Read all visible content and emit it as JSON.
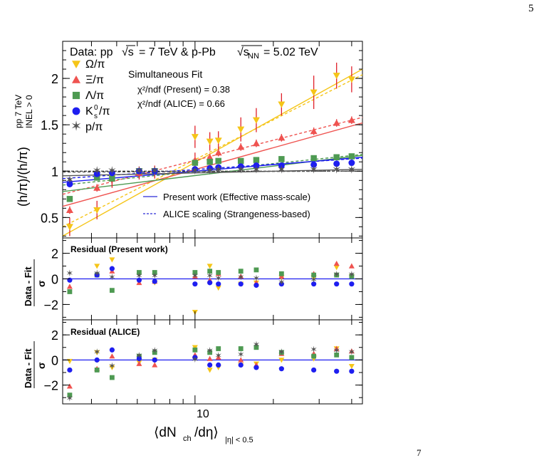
{
  "page": {
    "number": "5",
    "footer_fragment": "7"
  },
  "header": {
    "data_label": "Data: pp",
    "sqrt_label_pp": "√s",
    "pp_energy": "= 7 TeV & p-Pb",
    "sqrt_label_ppb": "√s",
    "ppb_sub": "NN",
    "ppb_energy": "= 5.02 TeV"
  },
  "fit_info": {
    "title": "Simultaneous Fit",
    "chi2_present": "χ²/ndf (Present) = 0.38",
    "chi2_alice": "χ²/ndf (ALICE) = 0.66"
  },
  "legend_species": [
    {
      "label": "Ω/π",
      "color": "#f5c518",
      "marker": "triangle-down"
    },
    {
      "label": "Ξ/π",
      "color": "#ef5350",
      "marker": "triangle-up"
    },
    {
      "label": "Λ/π",
      "color": "#4e9a52",
      "marker": "square"
    },
    {
      "label": "K",
      "sup": "0",
      "sub": "s",
      "tail": "/π",
      "color": "#1e1ef0",
      "marker": "circle"
    },
    {
      "label": "p/π",
      "color": "#555555",
      "marker": "star"
    }
  ],
  "legend_fits": {
    "present": "Present work (Effective mass-scale)",
    "alice": "ALICE scaling (Strangeness-based)"
  },
  "axes": {
    "ylabel_main": "(h/π)/(h/π)",
    "ylabel_sup": "pp 7 TeV",
    "ylabel_sub": "INEL > 0",
    "ylabel_residual_num": "Data - Fit",
    "ylabel_residual_den": "σ",
    "xlabel_left": "⟨dN",
    "xlabel_ch": "ch",
    "xlabel_mid": "/dη⟩",
    "xlabel_sub": "|η| < 0.5",
    "x_tick_label": "10",
    "y_main_ticks": [
      "0.5",
      "1",
      "1.5",
      "2"
    ],
    "y_resid_ticks": [
      "−2",
      "0",
      "2"
    ]
  },
  "panels": {
    "residual_present_title": "Residual (Present work)",
    "residual_alice_title": "Residual (ALICE)"
  },
  "chart_data": [
    {
      "type": "scatter",
      "title": "",
      "xscale": "log",
      "xlim": [
        3.1,
        44
      ],
      "ylim": [
        0.28,
        2.4
      ],
      "reference_line": 1,
      "series": [
        {
          "name": "Ω/π",
          "color": "#f5c518",
          "marker": "triangle-down",
          "x": [
            3.3,
            4.2,
            4.8,
            6.1,
            7.0,
            10.0,
            11.4,
            12.3,
            15.0,
            17.2,
            21.5,
            28.6,
            35.0,
            40.0
          ],
          "y": [
            0.4,
            0.58,
            0.93,
            0.98,
            0.99,
            1.37,
            1.32,
            1.33,
            1.45,
            1.55,
            1.72,
            1.85,
            2.03,
            1.99
          ],
          "err": [
            0.1,
            0.1,
            0.08,
            0.07,
            0.07,
            0.12,
            0.1,
            0.1,
            0.13,
            0.13,
            0.12,
            0.18,
            0.14,
            0.14
          ]
        },
        {
          "name": "Ξ/π",
          "color": "#ef5350",
          "marker": "triangle-up",
          "x": [
            3.3,
            4.2,
            4.8,
            6.1,
            7.0,
            10.0,
            11.4,
            12.3,
            15.0,
            17.2,
            21.5,
            28.6,
            35.0,
            40.0
          ],
          "y": [
            0.58,
            0.82,
            0.92,
            0.98,
            1.0,
            1.12,
            1.15,
            1.2,
            1.26,
            1.3,
            1.36,
            1.43,
            1.52,
            1.55
          ],
          "err": [
            0.04,
            0.04,
            0.1,
            0.04,
            0.04,
            0.08,
            0.04,
            0.04,
            0.04,
            0.04,
            0.04,
            0.04,
            0.04,
            0.04
          ]
        },
        {
          "name": "Λ/π",
          "color": "#4e9a52",
          "marker": "square",
          "x": [
            3.3,
            4.2,
            4.8,
            6.1,
            7.0,
            10.0,
            11.4,
            12.3,
            15.0,
            17.2,
            21.5,
            28.6,
            35.0,
            40.0
          ],
          "y": [
            0.7,
            0.93,
            0.92,
            1.0,
            1.0,
            1.09,
            1.1,
            1.11,
            1.11,
            1.12,
            1.13,
            1.14,
            1.15,
            1.16
          ],
          "err": [
            0.03,
            0.03,
            0.03,
            0.03,
            0.03,
            0.03,
            0.03,
            0.03,
            0.03,
            0.03,
            0.03,
            0.03,
            0.03,
            0.03
          ]
        },
        {
          "name": "K0s/π",
          "color": "#1e1ef0",
          "marker": "circle",
          "x": [
            3.3,
            4.2,
            4.8,
            6.1,
            7.0,
            10.0,
            11.4,
            12.3,
            15.0,
            17.2,
            21.5,
            28.6,
            35.0,
            40.0
          ],
          "y": [
            0.86,
            0.97,
            0.98,
            1.0,
            1.0,
            1.02,
            1.03,
            1.04,
            1.05,
            1.06,
            1.06,
            1.07,
            1.08,
            1.09
          ],
          "err": [
            0.02,
            0.02,
            0.02,
            0.02,
            0.02,
            0.02,
            0.02,
            0.02,
            0.02,
            0.02,
            0.02,
            0.02,
            0.02,
            0.02
          ]
        },
        {
          "name": "p/π",
          "color": "#555555",
          "marker": "star",
          "x": [
            3.3,
            4.2,
            4.8,
            6.1,
            7.0,
            10.0,
            11.4,
            12.3,
            15.0,
            17.2,
            21.5,
            28.6,
            35.0,
            40.0
          ],
          "y": [
            0.9,
            1.0,
            1.0,
            1.0,
            1.0,
            1.0,
            1.0,
            1.01,
            1.01,
            1.01,
            1.01,
            1.01,
            1.01,
            1.01
          ],
          "err": [
            0.01,
            0.01,
            0.01,
            0.01,
            0.01,
            0.01,
            0.01,
            0.01,
            0.01,
            0.01,
            0.01,
            0.01,
            0.01,
            0.01
          ]
        }
      ],
      "fits": [
        {
          "series": "Ω/π",
          "style": "solid",
          "y_at_xmin": 0.3,
          "y_at_xmax": 2.1
        },
        {
          "series": "Ω/π",
          "style": "dashed",
          "y_at_xmin": 0.4,
          "y_at_xmax": 2.04
        },
        {
          "series": "Ξ/π",
          "style": "solid",
          "y_at_xmin": 0.62,
          "y_at_xmax": 1.52
        },
        {
          "series": "Ξ/π",
          "style": "dashed",
          "y_at_xmin": 0.75,
          "y_at_xmax": 1.58
        },
        {
          "series": "Λ/π",
          "style": "solid",
          "y_at_xmin": 0.78,
          "y_at_xmax": 1.17
        },
        {
          "series": "Λ/π",
          "style": "dashed",
          "y_at_xmin": 0.85,
          "y_at_xmax": 1.18
        },
        {
          "series": "K0s/π",
          "style": "solid",
          "y_at_xmin": 0.88,
          "y_at_xmax": 1.15
        },
        {
          "series": "K0s/π",
          "style": "dashed",
          "y_at_xmin": 0.92,
          "y_at_xmax": 1.14
        },
        {
          "series": "p/π",
          "style": "solid",
          "y_at_xmin": 0.95,
          "y_at_xmax": 1.02
        },
        {
          "series": "p/π",
          "style": "dashed",
          "y_at_xmin": 0.99,
          "y_at_xmax": 1.0
        }
      ]
    },
    {
      "type": "scatter",
      "title": "Residual (Present work)",
      "xscale": "log",
      "xlim": [
        3.1,
        44
      ],
      "ylim": [
        -3.2,
        3.2
      ],
      "reference_line": 0,
      "series": [
        {
          "name": "Ω/π",
          "x": [
            4.2,
            4.8,
            6.1,
            7.0,
            10.0,
            11.4,
            12.3,
            15.0,
            17.2,
            21.5,
            28.6,
            35.0,
            40.0
          ],
          "y": [
            1.0,
            1.5,
            -0.2,
            -0.3,
            -2.6,
            1.0,
            -0.7,
            -0.4,
            -0.3,
            0.1,
            0.1,
            0.9,
            0.2
          ]
        },
        {
          "name": "Ξ/π",
          "x": [
            3.3,
            4.8,
            6.1,
            7.0,
            10.0,
            11.4,
            12.3,
            15.0,
            17.2,
            21.5,
            28.6,
            35.0,
            40.0
          ],
          "y": [
            -0.6,
            0.6,
            -0.3,
            -0.2,
            0.2,
            -0.1,
            0.4,
            0.2,
            -0.3,
            0.2,
            0.4,
            1.2,
            1.0
          ]
        },
        {
          "name": "Λ/π",
          "x": [
            3.3,
            4.2,
            4.8,
            6.1,
            7.0,
            10.0,
            11.4,
            12.3,
            15.0,
            17.2,
            21.5,
            28.6,
            35.0,
            40.0
          ],
          "y": [
            -1.0,
            0.3,
            -0.9,
            0.5,
            0.5,
            0.5,
            0.6,
            0.5,
            0.6,
            0.7,
            0.4,
            0.3,
            0.3,
            0.2
          ]
        },
        {
          "name": "K0s/π",
          "x": [
            3.3,
            4.2,
            4.8,
            6.1,
            7.0,
            10.0,
            11.4,
            12.3,
            15.0,
            17.2,
            21.5,
            28.6,
            35.0,
            40.0
          ],
          "y": [
            -0.1,
            0.3,
            0.8,
            -0.1,
            -0.2,
            -0.4,
            -0.3,
            -0.4,
            -0.4,
            -0.5,
            -0.4,
            -0.4,
            -0.4,
            -0.4
          ]
        },
        {
          "name": "p/π",
          "x": [
            3.3,
            4.2,
            4.8,
            6.1,
            7.0,
            10.0,
            11.4,
            12.3,
            15.0,
            17.2,
            21.5,
            28.6,
            35.0,
            40.0
          ],
          "y": [
            0.4,
            0.4,
            0.1,
            0.2,
            0.2,
            0.2,
            0.2,
            0.0,
            0.1,
            0.0,
            -0.3,
            -0.1,
            0.3,
            0.3
          ]
        }
      ]
    },
    {
      "type": "scatter",
      "title": "Residual (ALICE)",
      "xscale": "log",
      "xlim": [
        3.1,
        44
      ],
      "ylim": [
        -3.5,
        3.2
      ],
      "reference_line": 0,
      "series": [
        {
          "name": "Ω/π",
          "x": [
            3.3,
            4.2,
            4.8,
            6.1,
            7.0,
            10.0,
            11.4,
            12.3,
            15.0,
            17.2,
            21.5,
            28.6,
            35.0,
            40.0
          ],
          "y": [
            -0.1,
            0.6,
            -0.6,
            -0.2,
            0.0,
            1.0,
            -0.8,
            -0.6,
            -0.4,
            -0.3,
            0.0,
            0.1,
            0.9,
            -0.5
          ]
        },
        {
          "name": "Ξ/π",
          "x": [
            3.3,
            4.2,
            4.8,
            6.1,
            7.0,
            10.0,
            11.4,
            12.3,
            15.0,
            17.2,
            21.5,
            28.6,
            35.0,
            40.0
          ],
          "y": [
            -2.1,
            -0.7,
            0.3,
            -0.3,
            -0.4,
            0.4,
            0.1,
            0.2,
            0.0,
            -0.4,
            0.5,
            0.5,
            0.9,
            0.7
          ]
        },
        {
          "name": "Λ/π",
          "x": [
            3.3,
            4.2,
            4.8,
            6.1,
            7.0,
            10.0,
            11.4,
            12.3,
            15.0,
            17.2,
            21.5,
            28.6,
            35.0,
            40.0
          ],
          "y": [
            -2.8,
            -0.8,
            -1.4,
            0.3,
            0.6,
            0.8,
            0.6,
            0.9,
            0.9,
            1.0,
            0.6,
            0.3,
            0.4,
            0.2
          ]
        },
        {
          "name": "K0s/π",
          "x": [
            3.3,
            4.2,
            4.8,
            6.1,
            7.0,
            10.0,
            11.4,
            12.3,
            15.0,
            17.2,
            21.5,
            28.6,
            35.0,
            40.0
          ],
          "y": [
            -0.8,
            0.0,
            0.8,
            0.1,
            0.0,
            0.2,
            -0.4,
            -0.4,
            -0.4,
            -0.6,
            -0.7,
            -0.8,
            -0.9,
            -0.9
          ]
        },
        {
          "name": "p/π",
          "x": [
            3.3,
            4.2,
            4.8,
            6.1,
            7.0,
            10.0,
            11.4,
            12.3,
            15.0,
            17.2,
            21.5,
            28.6,
            35.0,
            40.0
          ],
          "y": [
            -3.1,
            0.6,
            -0.5,
            0.3,
            0.7,
            0.0,
            0.7,
            0.3,
            0.4,
            1.2,
            0.6,
            0.8,
            0.7,
            0.6
          ]
        }
      ]
    }
  ]
}
